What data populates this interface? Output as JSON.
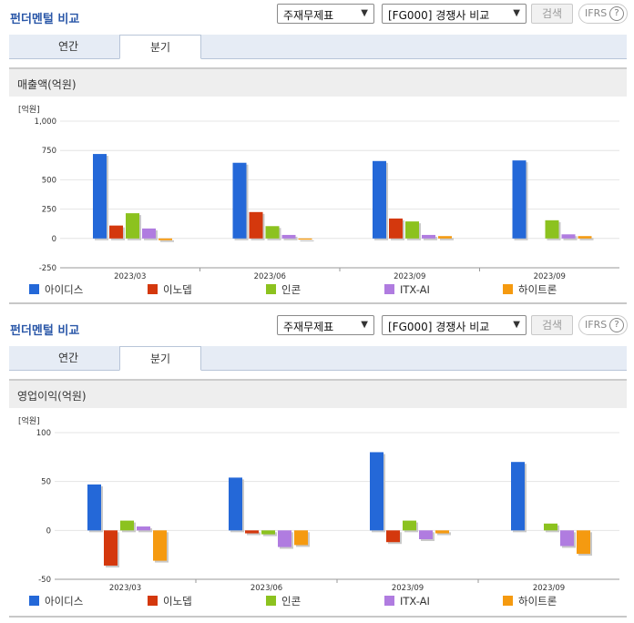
{
  "panels": [
    {
      "title": "펀더멘털 비교",
      "select_statement": "주재무제표",
      "select_compare": "[FG000] 경쟁사 비교",
      "search_label": "검색",
      "ifrs_label": "IFRS",
      "tabs": [
        {
          "label": "연간",
          "active": false
        },
        {
          "label": "분기",
          "active": true
        }
      ],
      "section_title": "매출액(억원)"
    },
    {
      "title": "펀더멘털 비교",
      "select_statement": "주재무제표",
      "select_compare": "[FG000] 경쟁사 비교",
      "search_label": "검색",
      "ifrs_label": "IFRS",
      "tabs": [
        {
          "label": "연간",
          "active": false
        },
        {
          "label": "분기",
          "active": true
        }
      ],
      "section_title": "영업이익(억원)"
    }
  ],
  "chart_data": [
    {
      "type": "bar",
      "title": "매출액(억원)",
      "unit_label": "[억원]",
      "categories": [
        "2023/03",
        "2023/06",
        "2023/09",
        "2023/09"
      ],
      "ylim": [
        -250,
        1000
      ],
      "yticks": [
        -250,
        0,
        250,
        500,
        750,
        1000
      ],
      "ytick_labels": [
        "-250",
        "0",
        "250",
        "500",
        "750",
        "1,000"
      ],
      "series": [
        {
          "name": "아이디스",
          "color": "#2468d8",
          "values": [
            720,
            645,
            660,
            665
          ]
        },
        {
          "name": "이노뎁",
          "color": "#d4380d",
          "values": [
            110,
            225,
            170,
            null
          ]
        },
        {
          "name": "인콘",
          "color": "#8cc21f",
          "values": [
            215,
            105,
            145,
            155
          ]
        },
        {
          "name": "ITX-AI",
          "color": "#b07ce0",
          "values": [
            85,
            30,
            30,
            35
          ]
        },
        {
          "name": "하이트론",
          "color": "#f59a10",
          "values": [
            -15,
            -10,
            20,
            20
          ]
        }
      ]
    },
    {
      "type": "bar",
      "title": "영업이익(억원)",
      "unit_label": "[억원]",
      "categories": [
        "2023/03",
        "2023/06",
        "2023/09",
        "2023/09"
      ],
      "ylim": [
        -50,
        100
      ],
      "yticks": [
        -50,
        0,
        50,
        100
      ],
      "ytick_labels": [
        "-50",
        "0",
        "50",
        "100"
      ],
      "series": [
        {
          "name": "아이디스",
          "color": "#2468d8",
          "values": [
            47,
            54,
            80,
            70
          ]
        },
        {
          "name": "이노뎁",
          "color": "#d4380d",
          "values": [
            -36,
            -3,
            -12,
            null
          ]
        },
        {
          "name": "인콘",
          "color": "#8cc21f",
          "values": [
            10,
            -4,
            10,
            7
          ]
        },
        {
          "name": "ITX-AI",
          "color": "#b07ce0",
          "values": [
            4,
            -17,
            -9,
            -16
          ]
        },
        {
          "name": "하이트론",
          "color": "#f59a10",
          "values": [
            -31,
            -15,
            -3,
            -24
          ]
        }
      ]
    }
  ]
}
